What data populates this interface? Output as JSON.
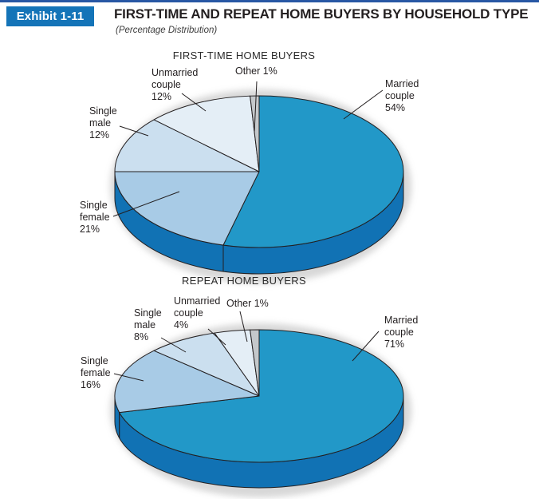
{
  "header": {
    "badge_label": "Exhibit 1-11",
    "title": "FIRST-TIME AND REPEAT HOME BUYERS BY HOUSEHOLD TYPE",
    "subtitle": "(Percentage Distribution)"
  },
  "colors": {
    "top_bar": "#2857A4",
    "badge_bg": "#1474B8",
    "outline": "#231F20",
    "pie_side": "#1172B4",
    "shadow": "#b0b0b0"
  },
  "chart_data": [
    {
      "type": "pie",
      "style": "3d",
      "title": "FIRST-TIME HOME BUYERS",
      "unit": "percent",
      "start_angle": "12-oclock",
      "direction": "clockwise",
      "legend": "none",
      "slices": [
        {
          "label": "Married couple",
          "value": 54,
          "color": "#2298C8"
        },
        {
          "label": "Single female",
          "value": 21,
          "color": "#A8CBE6"
        },
        {
          "label": "Single male",
          "value": 12,
          "color": "#CBDFEF"
        },
        {
          "label": "Unmarried couple",
          "value": 12,
          "color": "#E4EEF6"
        },
        {
          "label": "Other",
          "value": 1,
          "color": "#C4C8CB"
        }
      ],
      "labels": {
        "married": "Married\ncouple\n54%",
        "single_female": "Single\nfemale\n21%",
        "single_male": "Single\nmale\n12%",
        "unmarried": "Unmarried\ncouple\n12%",
        "other": "Other 1%"
      }
    },
    {
      "type": "pie",
      "style": "3d",
      "title": "REPEAT HOME BUYERS",
      "unit": "percent",
      "start_angle": "12-oclock",
      "direction": "clockwise",
      "legend": "none",
      "slices": [
        {
          "label": "Married couple",
          "value": 71,
          "color": "#2298C8"
        },
        {
          "label": "Single female",
          "value": 16,
          "color": "#A8CBE6"
        },
        {
          "label": "Single male",
          "value": 8,
          "color": "#CBDFEF"
        },
        {
          "label": "Unmarried couple",
          "value": 4,
          "color": "#E4EEF6"
        },
        {
          "label": "Other",
          "value": 1,
          "color": "#C4C8CB"
        }
      ],
      "labels": {
        "married": "Married\ncouple\n71%",
        "single_female": "Single\nfemale\n16%",
        "single_male": "Single\nmale\n8%",
        "unmarried": "Unmarried\ncouple\n4%",
        "other": "Other 1%"
      }
    }
  ]
}
